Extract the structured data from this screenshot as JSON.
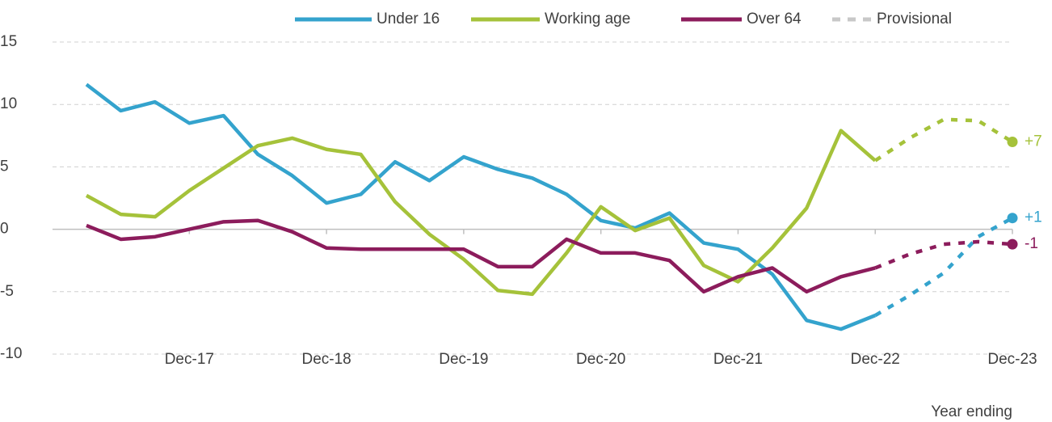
{
  "chart_data": {
    "type": "line",
    "categories": [
      null,
      null,
      null,
      "Dec-17",
      null,
      null,
      null,
      "Dec-18",
      null,
      null,
      null,
      "Dec-19",
      null,
      null,
      null,
      "Dec-20",
      null,
      null,
      null,
      "Dec-21",
      null,
      null,
      null,
      "Dec-22",
      null,
      null,
      null,
      "Dec-23"
    ],
    "series": [
      {
        "name": "Under 16",
        "color": "#34a3cd",
        "end_label": "+1",
        "values": [
          11.6,
          9.5,
          10.2,
          8.5,
          9.1,
          6.0,
          4.3,
          2.1,
          2.8,
          5.4,
          3.9,
          5.8,
          4.8,
          4.1,
          2.8,
          0.7,
          0.1,
          1.3,
          -1.1,
          -1.6,
          -3.6,
          -7.3,
          -8.0,
          -6.9,
          -5.3,
          -3.5,
          -0.6,
          0.9
        ]
      },
      {
        "name": "Working age",
        "color": "#a5c23a",
        "end_label": "+7",
        "values": [
          2.7,
          1.2,
          1.0,
          3.1,
          4.9,
          6.7,
          7.3,
          6.4,
          6.0,
          2.2,
          -0.4,
          -2.4,
          -4.9,
          -5.2,
          -1.9,
          1.8,
          -0.1,
          0.9,
          -2.9,
          -4.2,
          -1.5,
          1.7,
          7.9,
          5.5,
          7.3,
          8.8,
          8.7,
          7.0
        ]
      },
      {
        "name": "Over 64",
        "color": "#8c1c5c",
        "end_label": "-1",
        "values": [
          0.3,
          -0.8,
          -0.6,
          0.0,
          0.6,
          0.7,
          -0.2,
          -1.5,
          -1.6,
          -1.6,
          -1.6,
          -1.6,
          -3.0,
          -3.0,
          -0.8,
          -1.9,
          -1.9,
          -2.5,
          -5.0,
          -3.8,
          -3.1,
          -5.0,
          -3.8,
          -3.1,
          -2.0,
          -1.2,
          -1.0,
          -1.2
        ]
      }
    ],
    "provisional": {
      "name": "Provisional",
      "color": "#c8c8c8",
      "from": "Dec-22"
    },
    "x_label": "Year ending",
    "ylim": [
      -10,
      15
    ],
    "yticks": [
      -10,
      -5,
      0,
      5,
      10,
      15
    ],
    "grid": true
  }
}
